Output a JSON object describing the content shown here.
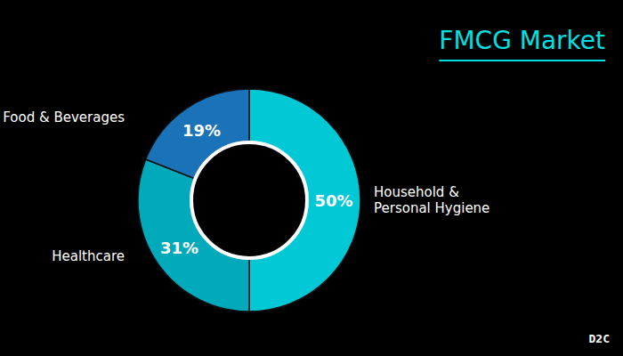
{
  "chart_data": {
    "type": "pie",
    "title": "FMCG Market",
    "categories": [
      "Household &\nPersonal Hygiene",
      "Healthcare",
      "Food & Beverages"
    ],
    "values": [
      50,
      31,
      19
    ],
    "value_labels": [
      "50%",
      "31%",
      "19%"
    ],
    "colors": [
      "#00c8d4",
      "#00aabb",
      "#1a72b8"
    ],
    "data_labels": true,
    "annotations": [
      "D2C"
    ]
  }
}
